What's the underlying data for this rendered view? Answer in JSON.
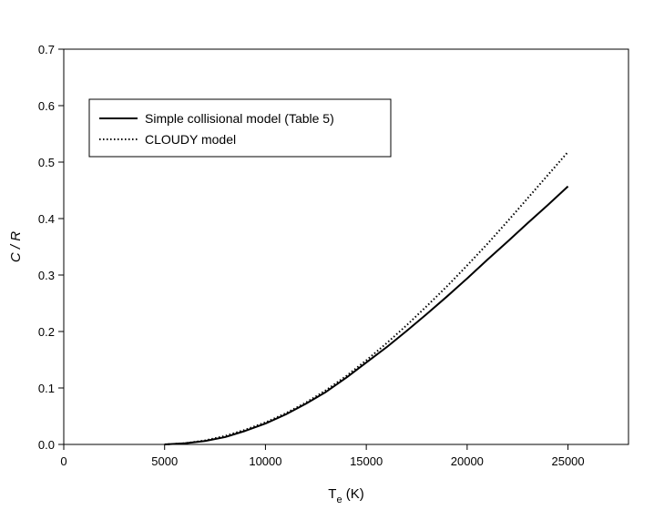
{
  "chart_data": {
    "type": "line",
    "xlabel_main": "T",
    "xlabel_sub": "e",
    "xlabel_unit": "(K)",
    "ylabel": "C / R",
    "xlim": [
      0,
      28000
    ],
    "ylim": [
      0,
      0.7
    ],
    "xticks": [
      0,
      5000,
      10000,
      15000,
      20000,
      25000
    ],
    "yticks": [
      0.0,
      0.1,
      0.2,
      0.3,
      0.4,
      0.5,
      0.6,
      0.7
    ],
    "ytick_labels": [
      "0.0",
      "0.1",
      "0.2",
      "0.3",
      "0.4",
      "0.5",
      "0.6",
      "0.7"
    ],
    "grid": false,
    "legend_position": "top-left",
    "series": [
      {
        "name": "Simple collisional model (Table 5)",
        "style": "solid",
        "color": "#000000",
        "x": [
          5000,
          6000,
          7000,
          8000,
          9000,
          10000,
          11000,
          12000,
          13000,
          14000,
          15000,
          16000,
          17000,
          18000,
          19000,
          20000,
          21000,
          22000,
          23000,
          24000,
          25000
        ],
        "y": [
          0.0,
          0.002,
          0.006,
          0.013,
          0.024,
          0.037,
          0.053,
          0.072,
          0.093,
          0.118,
          0.145,
          0.172,
          0.201,
          0.231,
          0.262,
          0.294,
          0.327,
          0.359,
          0.392,
          0.424,
          0.457
        ]
      },
      {
        "name": "CLOUDY model",
        "style": "dotted",
        "color": "#000000",
        "x": [
          5000,
          6000,
          7000,
          8000,
          9000,
          10000,
          11000,
          12000,
          13000,
          14000,
          15000,
          16000,
          17000,
          18000,
          19000,
          20000,
          21000,
          22000,
          23000,
          24000,
          25000
        ],
        "y": [
          0.0,
          0.002,
          0.007,
          0.015,
          0.026,
          0.039,
          0.055,
          0.074,
          0.096,
          0.121,
          0.149,
          0.179,
          0.211,
          0.245,
          0.28,
          0.317,
          0.355,
          0.395,
          0.436,
          0.477,
          0.518
        ]
      }
    ]
  }
}
